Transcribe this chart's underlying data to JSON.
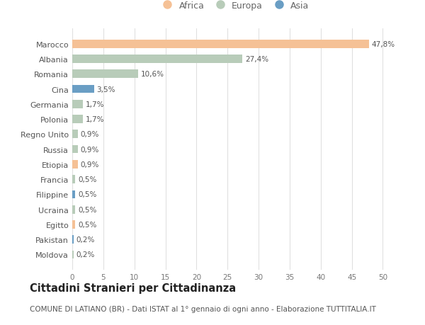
{
  "categories": [
    "Moldova",
    "Pakistan",
    "Egitto",
    "Ucraina",
    "Filippine",
    "Francia",
    "Etiopia",
    "Russia",
    "Regno Unito",
    "Polonia",
    "Germania",
    "Cina",
    "Romania",
    "Albania",
    "Marocco"
  ],
  "values": [
    0.2,
    0.2,
    0.5,
    0.5,
    0.5,
    0.5,
    0.9,
    0.9,
    0.9,
    1.7,
    1.7,
    3.5,
    10.6,
    27.4,
    47.8
  ],
  "labels": [
    "0,2%",
    "0,2%",
    "0,5%",
    "0,5%",
    "0,5%",
    "0,5%",
    "0,9%",
    "0,9%",
    "0,9%",
    "1,7%",
    "1,7%",
    "3,5%",
    "10,6%",
    "27,4%",
    "47,8%"
  ],
  "colors": [
    "#b8ccb9",
    "#6a9ec4",
    "#f5c196",
    "#b8ccb9",
    "#6a9ec4",
    "#b8ccb9",
    "#f5c196",
    "#b8ccb9",
    "#b8ccb9",
    "#b8ccb9",
    "#b8ccb9",
    "#6a9ec4",
    "#b8ccb9",
    "#b8ccb9",
    "#f5c196"
  ],
  "legend_labels": [
    "Africa",
    "Europa",
    "Asia"
  ],
  "legend_colors": [
    "#f5c196",
    "#b8ccb9",
    "#6a9ec4"
  ],
  "title": "Cittadini Stranieri per Cittadinanza",
  "subtitle": "COMUNE DI LATIANO (BR) - Dati ISTAT al 1° gennaio di ogni anno - Elaborazione TUTTITALIA.IT",
  "xlim": [
    0,
    52
  ],
  "xticks": [
    0,
    5,
    10,
    15,
    20,
    25,
    30,
    35,
    40,
    45,
    50
  ],
  "bg_color": "#ffffff",
  "grid_color": "#e0e0e0",
  "bar_height": 0.55,
  "label_fontsize": 7.5,
  "title_fontsize": 10.5,
  "subtitle_fontsize": 7.5,
  "category_fontsize": 8.0,
  "legend_fontsize": 9.0
}
